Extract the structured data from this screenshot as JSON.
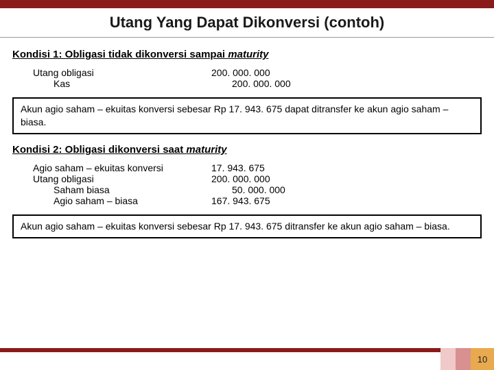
{
  "colors": {
    "brand_red": "#8b1a1a",
    "accent1": "#f0c9c9",
    "accent2": "#d89090",
    "accent3": "#e8a94f",
    "text": "#1a1a1a",
    "border": "#000000",
    "bg": "#ffffff"
  },
  "title": "Utang Yang Dapat Dikonversi (contoh)",
  "kondisi1": {
    "heading_prefix": "Kondisi 1: Obligasi tidak dikonversi sampai ",
    "heading_italic": "maturity",
    "entries": [
      {
        "label": "Utang obligasi",
        "amount": "200. 000. 000",
        "indent": 0,
        "shift": 0
      },
      {
        "label": "Kas",
        "amount": "200. 000. 000",
        "indent": 1,
        "shift": 1
      }
    ],
    "note": "Akun agio saham – ekuitas konversi sebesar Rp 17. 943. 675 dapat ditransfer ke akun agio saham – biasa."
  },
  "kondisi2": {
    "heading_prefix": "Kondisi 2: Obligasi dikonversi saat ",
    "heading_italic": "maturity",
    "entries": [
      {
        "label": "Agio saham – ekuitas konversi",
        "amount": " 17. 943. 675",
        "indent": 0,
        "shift": 0
      },
      {
        "label": "Utang obligasi",
        "amount": "200. 000. 000",
        "indent": 0,
        "shift": 0
      },
      {
        "label": "Saham biasa",
        "amount": " 50. 000. 000",
        "indent": 1,
        "shift": 1
      },
      {
        "label": "Agio saham – biasa",
        "amount": "167. 943. 675",
        "indent": 1,
        "shift": 0
      }
    ],
    "note": "Akun agio saham – ekuitas konversi sebesar Rp 17. 943. 675 ditransfer ke akun agio saham – biasa."
  },
  "page_number": "10"
}
